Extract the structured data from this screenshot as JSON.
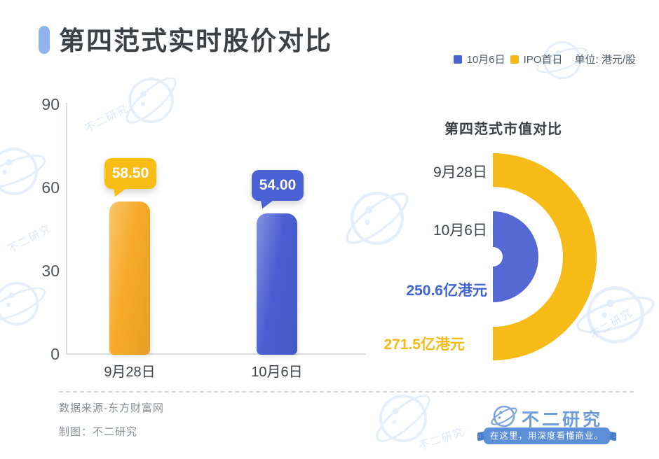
{
  "header": {
    "title": "第四范式实时股价对比",
    "accent_color": "#8DB4EF"
  },
  "legend": {
    "items": [
      {
        "label": "10月6日",
        "color": "#4A63D0"
      },
      {
        "label": "IPO首日",
        "color": "#F5B916"
      }
    ],
    "unit_label": "单位: 港元/股"
  },
  "chart_data": [
    {
      "type": "bar",
      "title": "第四范式实时股价对比",
      "categories": [
        "9月28日",
        "10月6日"
      ],
      "values": [
        58.5,
        54.0
      ],
      "value_labels": [
        "58.50",
        "54.00"
      ],
      "bar_colors": [
        "#F6AA28",
        "#4A5ED2"
      ],
      "bubble_colors": [
        "#F9BD17",
        "#4A61D4"
      ],
      "ylim": [
        0,
        90
      ],
      "yticks": [
        0,
        30,
        60,
        90
      ],
      "unit": "港元/股",
      "legend_map": {
        "9月28日": "IPO首日",
        "10月6日": "10月6日"
      },
      "grid": false,
      "legend_position": "top-right"
    },
    {
      "type": "pie",
      "variant": "half-donut",
      "title": "第四范式市值对比",
      "items": [
        {
          "label": "9月28日",
          "value": 271.5,
          "value_label": "271.5亿港元",
          "color": "#F7BB17",
          "text_color": "#F6BA16"
        },
        {
          "label": "10月6日",
          "value": 250.6,
          "value_label": "250.6亿港元",
          "color": "#5569D4",
          "text_color": "#3F63D3"
        }
      ],
      "unit": "亿港元"
    }
  ],
  "footer": {
    "source": "数据来源-东方财富网",
    "credit": "制图：不二研究"
  },
  "brand": {
    "name": "不二研究",
    "tagline": "在这里，用深度看懂商业。"
  },
  "watermark": {
    "text": "不二研究"
  }
}
